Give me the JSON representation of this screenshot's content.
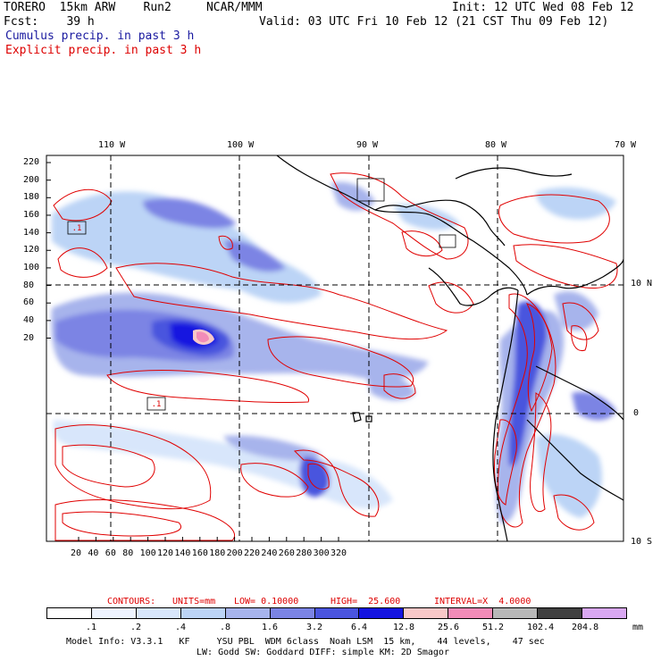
{
  "header": {
    "line1_left": "TORERO  15km ARW    Run2     NCAR/MMM",
    "line1_right": "Init: 12 UTC Wed 08 Feb 12",
    "line2_left": "Fcst:    39 h",
    "line2_right": "Valid: 03 UTC Fri 10 Feb 12 (21 CST Thu 09 Feb 12)",
    "legend_cumulus": "Cumulus precip. in past 3 h",
    "legend_explicit": "Explicit precip. in past 3 h"
  },
  "colors": {
    "cumulus_text": "#1a1aa0",
    "explicit_text": "#dd0000",
    "contour_red": "#e00000",
    "gridline": "#000000",
    "coast": "#000000"
  },
  "map": {
    "lon_labels": [
      "110 W",
      "100 W",
      "90 W",
      "80 W",
      "70 W"
    ],
    "lat_labels": [
      "10 N",
      "0",
      "10 S"
    ],
    "y_ticks": [
      "220",
      "200",
      "180",
      "160",
      "140",
      "120",
      "100",
      "80",
      "60",
      "40",
      "20"
    ],
    "x_ticks": [
      "20",
      "40",
      "60",
      "80",
      "100",
      "120",
      "140",
      "160",
      "180",
      "200",
      "220",
      "240",
      "260",
      "280",
      "300",
      "320"
    ],
    "contour_marks": [
      ".1",
      ".1"
    ]
  },
  "contours": {
    "label_contours": "CONTOURS:",
    "label_units": "UNITS=mm",
    "label_low": "LOW= 0.10000",
    "label_high": "HIGH=  25.600",
    "label_interval": "INTERVAL=X  4.0000"
  },
  "colorbar": {
    "colors": [
      "#ffffff",
      "#eef4ff",
      "#d8e6fb",
      "#bcd4f6",
      "#a7b4ec",
      "#7b84e4",
      "#4a55de",
      "#1414e0",
      "#f8c8c8",
      "#f28cb8",
      "#b8b8b8",
      "#404040",
      "#d9a8f2"
    ],
    "labels": [
      ".1",
      ".2",
      ".4",
      ".8",
      "1.6",
      "3.2",
      "6.4",
      "12.8",
      "25.6",
      "51.2",
      "102.4",
      "204.8"
    ],
    "unit": "mm"
  },
  "footer": {
    "line1": "Model Info: V3.3.1   KF     YSU PBL  WDM 6class  Noah LSM  15 km,    44 levels,    47 sec",
    "line2": "LW: Godd SW: Goddard DIFF: simple KM: 2D Smagor"
  }
}
